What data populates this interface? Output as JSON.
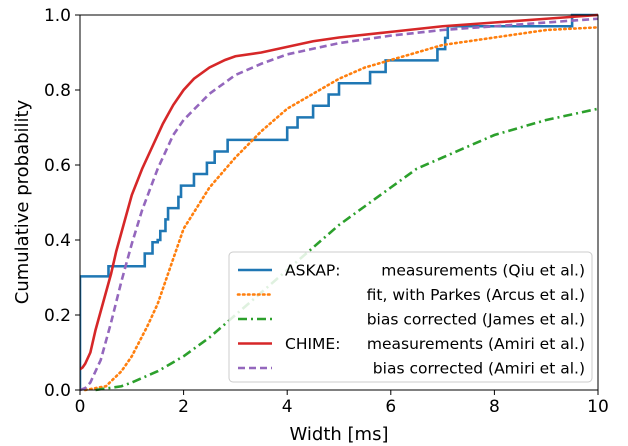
{
  "chart_data": {
    "type": "line",
    "title": "",
    "xlabel": "Width [ms]",
    "ylabel": "Cumulative probability",
    "xlim": [
      0,
      10
    ],
    "ylim": [
      0,
      1.0
    ],
    "xticks": [
      "0",
      "2",
      "4",
      "6",
      "8",
      "10"
    ],
    "yticks": [
      "0.0",
      "0.2",
      "0.4",
      "0.6",
      "0.8",
      "1.0"
    ],
    "grid": false,
    "legend_position": "lower-right",
    "legend": [
      {
        "prefix": "ASKAP:",
        "label": "measurements (Qiu et al.)"
      },
      {
        "prefix": "",
        "label": "fit, with Parkes (Arcus et al.)"
      },
      {
        "prefix": "",
        "label": "bias corrected (James et al.)"
      },
      {
        "prefix": "CHIME:",
        "label": "measurements (Amiri et al.)"
      },
      {
        "prefix": "",
        "label": "bias corrected (Amiri et al.)"
      }
    ],
    "series": [
      {
        "id": "askap_meas",
        "color": "#1f77b4",
        "style": "solid",
        "step": true,
        "points": [
          [
            0,
            0
          ],
          [
            0,
            0.303
          ],
          [
            0.55,
            0.303
          ],
          [
            0.55,
            0.33
          ],
          [
            1.25,
            0.33
          ],
          [
            1.25,
            0.364
          ],
          [
            1.4,
            0.364
          ],
          [
            1.4,
            0.394
          ],
          [
            1.5,
            0.394
          ],
          [
            1.5,
            0.4
          ],
          [
            1.55,
            0.4
          ],
          [
            1.55,
            0.424
          ],
          [
            1.65,
            0.424
          ],
          [
            1.65,
            0.455
          ],
          [
            1.7,
            0.455
          ],
          [
            1.7,
            0.485
          ],
          [
            1.9,
            0.485
          ],
          [
            1.9,
            0.515
          ],
          [
            1.95,
            0.515
          ],
          [
            1.95,
            0.545
          ],
          [
            2.2,
            0.545
          ],
          [
            2.2,
            0.576
          ],
          [
            2.45,
            0.576
          ],
          [
            2.45,
            0.606
          ],
          [
            2.6,
            0.606
          ],
          [
            2.6,
            0.636
          ],
          [
            2.85,
            0.636
          ],
          [
            2.85,
            0.667
          ],
          [
            4.0,
            0.667
          ],
          [
            4.0,
            0.7
          ],
          [
            4.2,
            0.7
          ],
          [
            4.2,
            0.727
          ],
          [
            4.5,
            0.727
          ],
          [
            4.5,
            0.758
          ],
          [
            4.8,
            0.758
          ],
          [
            4.8,
            0.788
          ],
          [
            5.0,
            0.788
          ],
          [
            5.0,
            0.818
          ],
          [
            5.6,
            0.818
          ],
          [
            5.6,
            0.848
          ],
          [
            5.9,
            0.848
          ],
          [
            5.9,
            0.879
          ],
          [
            6.9,
            0.879
          ],
          [
            6.9,
            0.909
          ],
          [
            7.05,
            0.909
          ],
          [
            7.05,
            0.939
          ],
          [
            7.1,
            0.939
          ],
          [
            7.1,
            0.97
          ],
          [
            9.5,
            0.97
          ],
          [
            9.5,
            1.0
          ],
          [
            10,
            1.0
          ]
        ]
      },
      {
        "id": "askap_fit",
        "color": "#ff7f0e",
        "style": "dotted",
        "step": false,
        "points": [
          [
            0.1,
            0
          ],
          [
            0.5,
            0.01
          ],
          [
            0.8,
            0.05
          ],
          [
            1.0,
            0.09
          ],
          [
            1.3,
            0.17
          ],
          [
            1.5,
            0.23
          ],
          [
            1.8,
            0.35
          ],
          [
            2.0,
            0.43
          ],
          [
            2.5,
            0.54
          ],
          [
            3.0,
            0.62
          ],
          [
            3.5,
            0.69
          ],
          [
            4.0,
            0.75
          ],
          [
            4.5,
            0.79
          ],
          [
            5.0,
            0.83
          ],
          [
            5.5,
            0.86
          ],
          [
            6.0,
            0.88
          ],
          [
            7.0,
            0.92
          ],
          [
            8.0,
            0.94
          ],
          [
            9.0,
            0.96
          ],
          [
            10.0,
            0.967
          ]
        ]
      },
      {
        "id": "askap_bias",
        "color": "#2ca02c",
        "style": "dashdot",
        "step": false,
        "points": [
          [
            0.3,
            0
          ],
          [
            0.8,
            0.01
          ],
          [
            1.0,
            0.02
          ],
          [
            1.5,
            0.05
          ],
          [
            2.0,
            0.09
          ],
          [
            2.5,
            0.14
          ],
          [
            3.0,
            0.2
          ],
          [
            3.5,
            0.26
          ],
          [
            4.0,
            0.32
          ],
          [
            4.5,
            0.38
          ],
          [
            5.0,
            0.44
          ],
          [
            5.5,
            0.49
          ],
          [
            6.0,
            0.54
          ],
          [
            6.5,
            0.59
          ],
          [
            7.0,
            0.62
          ],
          [
            7.5,
            0.65
          ],
          [
            8.0,
            0.68
          ],
          [
            8.5,
            0.7
          ],
          [
            9.0,
            0.72
          ],
          [
            9.5,
            0.735
          ],
          [
            10.0,
            0.75
          ]
        ]
      },
      {
        "id": "chime_meas",
        "color": "#d62728",
        "style": "solid",
        "step": false,
        "points": [
          [
            0,
            0.055
          ],
          [
            0.05,
            0.06
          ],
          [
            0.1,
            0.07
          ],
          [
            0.2,
            0.1
          ],
          [
            0.3,
            0.16
          ],
          [
            0.4,
            0.21
          ],
          [
            0.5,
            0.26
          ],
          [
            0.6,
            0.31
          ],
          [
            0.7,
            0.37
          ],
          [
            0.8,
            0.42
          ],
          [
            1.0,
            0.52
          ],
          [
            1.2,
            0.59
          ],
          [
            1.4,
            0.65
          ],
          [
            1.6,
            0.71
          ],
          [
            1.8,
            0.76
          ],
          [
            2.0,
            0.8
          ],
          [
            2.2,
            0.83
          ],
          [
            2.5,
            0.86
          ],
          [
            2.8,
            0.88
          ],
          [
            3.0,
            0.89
          ],
          [
            3.5,
            0.9
          ],
          [
            4.0,
            0.915
          ],
          [
            4.5,
            0.93
          ],
          [
            5.0,
            0.94
          ],
          [
            6.0,
            0.955
          ],
          [
            7.0,
            0.97
          ],
          [
            8.0,
            0.98
          ],
          [
            9.0,
            0.99
          ],
          [
            9.5,
            0.995
          ],
          [
            10.0,
            1.0
          ]
        ]
      },
      {
        "id": "chime_bias",
        "color": "#9467bd",
        "style": "dashed",
        "step": false,
        "points": [
          [
            0,
            0
          ],
          [
            0.1,
            0.005
          ],
          [
            0.2,
            0.02
          ],
          [
            0.4,
            0.08
          ],
          [
            0.6,
            0.18
          ],
          [
            0.8,
            0.29
          ],
          [
            1.0,
            0.39
          ],
          [
            1.2,
            0.48
          ],
          [
            1.5,
            0.59
          ],
          [
            1.8,
            0.68
          ],
          [
            2.0,
            0.72
          ],
          [
            2.5,
            0.79
          ],
          [
            3.0,
            0.84
          ],
          [
            3.5,
            0.87
          ],
          [
            4.0,
            0.895
          ],
          [
            5.0,
            0.925
          ],
          [
            6.0,
            0.945
          ],
          [
            7.0,
            0.96
          ],
          [
            8.0,
            0.97
          ],
          [
            9.0,
            0.98
          ],
          [
            10.0,
            0.99
          ]
        ]
      }
    ]
  }
}
